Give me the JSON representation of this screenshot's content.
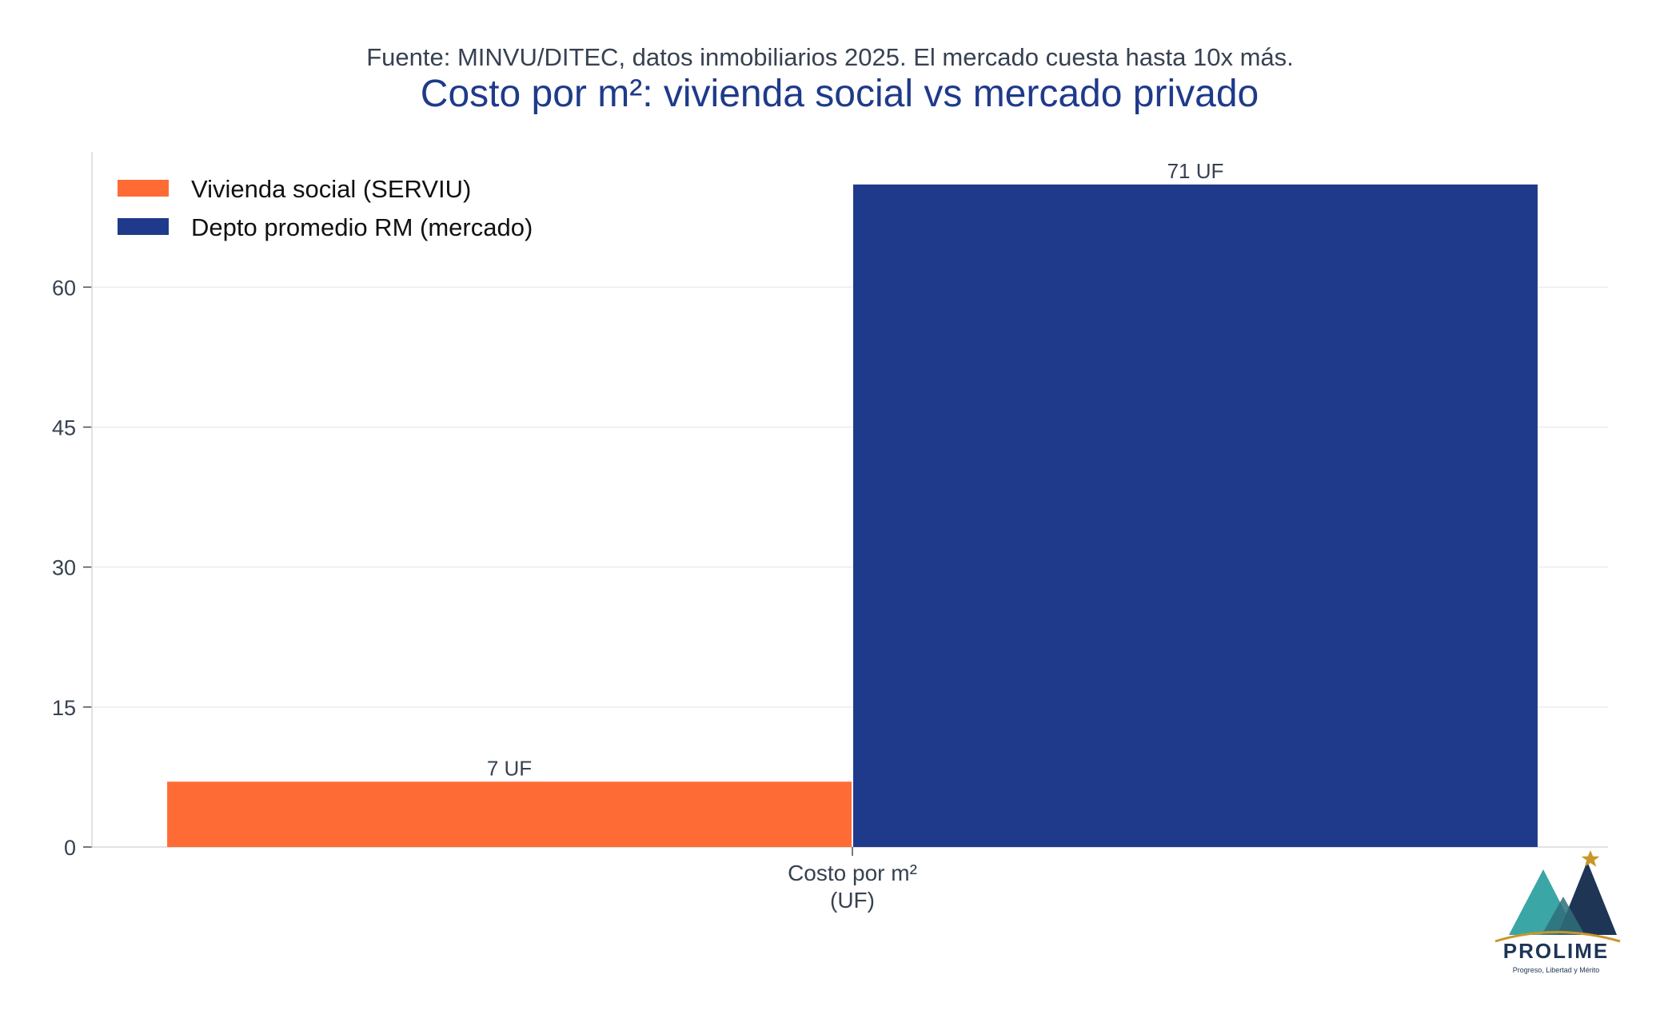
{
  "header": {
    "subtitle": "Fuente: MINVU/DITEC, datos inmobiliarios 2025. El mercado cuesta hasta 10x más.",
    "title": "Costo por m²: vivienda social vs mercado privado"
  },
  "colors": {
    "title": "#1f3a8a",
    "subtitle": "#374151",
    "axis_text": "#374151",
    "grid": "#ececec",
    "axis_line": "#d9d9d9"
  },
  "chart_data": {
    "type": "bar",
    "categories": [
      "Costo por m²\n(UF)"
    ],
    "category_label_lines": [
      "Costo por m²",
      "(UF)"
    ],
    "series": [
      {
        "name": "Vivienda social (SERVIU)",
        "values": [
          7
        ],
        "color": "#ff6b35",
        "data_label": "7 UF"
      },
      {
        "name": "Depto promedio RM (mercado)",
        "values": [
          71
        ],
        "color": "#1f3a8a",
        "data_label": "71 UF"
      }
    ],
    "ylim": [
      0,
      74.5
    ],
    "yticks": [
      0,
      15,
      30,
      45,
      60
    ],
    "grid": true,
    "legend_position": "top-left",
    "xlabel": "",
    "ylabel": ""
  },
  "logo": {
    "name": "PROLIME",
    "tagline": "Progreso, Libertad y Mérito",
    "colors": {
      "teal": "#3aa6a5",
      "navy": "#1e3556",
      "gold": "#c9962a"
    }
  }
}
